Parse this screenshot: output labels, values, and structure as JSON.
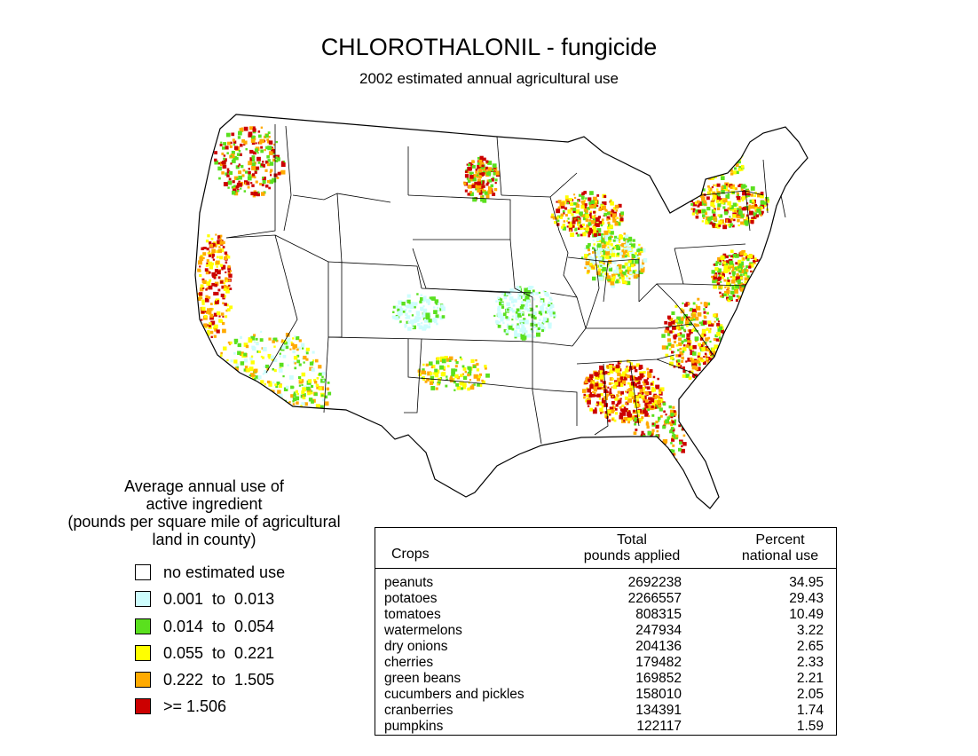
{
  "header": {
    "title": "CHLOROTHALONIL - fungicide",
    "subtitle": "2002 estimated annual agricultural use"
  },
  "legend": {
    "title_lines": [
      "Average annual use of",
      "active ingredient",
      "(pounds per square mile of agricultural",
      "land in county)"
    ],
    "items": [
      {
        "label": "no estimated use",
        "color": "#ffffff"
      },
      {
        "label": "0.001  to  0.013",
        "color": "#cdfdfd"
      },
      {
        "label": "0.014  to  0.054",
        "color": "#5ae01e"
      },
      {
        "label": "0.055  to  0.221",
        "color": "#ffff00"
      },
      {
        "label": "0.222  to  1.505",
        "color": "#ffaa00"
      },
      {
        "label": ">= 1.506",
        "color": "#cc0000"
      }
    ]
  },
  "table": {
    "headers": {
      "crops": "Crops",
      "pounds": [
        "Total",
        "pounds applied"
      ],
      "percent": [
        "Percent",
        "national use"
      ]
    },
    "rows": [
      {
        "crop": "peanuts",
        "pounds": "2692238",
        "percent": "34.95"
      },
      {
        "crop": "potatoes",
        "pounds": "2266557",
        "percent": "29.43"
      },
      {
        "crop": "tomatoes",
        "pounds": "808315",
        "percent": "10.49"
      },
      {
        "crop": "watermelons",
        "pounds": "247934",
        "percent": "3.22"
      },
      {
        "crop": "dry onions",
        "pounds": "204136",
        "percent": "2.65"
      },
      {
        "crop": "cherries",
        "pounds": "179482",
        "percent": "2.33"
      },
      {
        "crop": "green beans",
        "pounds": "169852",
        "percent": "2.21"
      },
      {
        "crop": "cucumbers and pickles",
        "pounds": "158010",
        "percent": "2.05"
      },
      {
        "crop": "cranberries",
        "pounds": "134391",
        "percent": "1.74"
      },
      {
        "crop": "pumpkins",
        "pounds": "122117",
        "percent": "1.59"
      }
    ]
  },
  "map": {
    "colors": {
      "none": "#ffffff",
      "low": "#cdfdfd",
      "mid_low": "#5ae01e",
      "mid": "#ffff00",
      "mid_high": "#ffaa00",
      "high": "#cc0000",
      "outline": "#000000"
    }
  }
}
